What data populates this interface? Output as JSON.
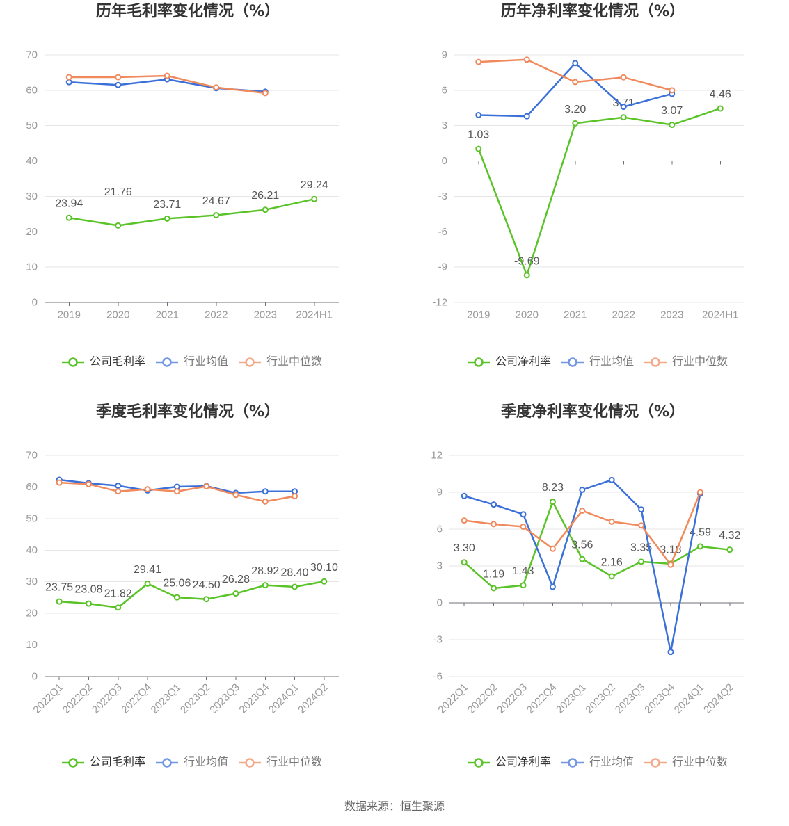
{
  "source": "数据来源：恒生聚源",
  "series_colors": [
    "#5ac328",
    "#3b70d9",
    "#f08a5d"
  ],
  "chart_data": [
    {
      "type": "line",
      "title": "历年毛利率变化情况（%）",
      "categories": [
        "2019",
        "2020",
        "2021",
        "2022",
        "2023",
        "2024H1"
      ],
      "ylim": [
        0,
        70
      ],
      "yticks": [
        70,
        60,
        50,
        40,
        30,
        20,
        10,
        0
      ],
      "grid": true,
      "legend": "bottom",
      "series": [
        {
          "name": "公司毛利率",
          "values": [
            23.94,
            21.76,
            23.71,
            24.67,
            26.21,
            29.24
          ],
          "data_labels": true
        },
        {
          "name": "行业均值",
          "values": [
            62.3,
            61.5,
            63.1,
            60.6,
            59.6,
            null
          ]
        },
        {
          "name": "行业中位数",
          "values": [
            63.7,
            63.7,
            64.1,
            60.8,
            59.2,
            null
          ]
        }
      ]
    },
    {
      "type": "line",
      "title": "历年净利率变化情况（%）",
      "categories": [
        "2019",
        "2020",
        "2021",
        "2022",
        "2023",
        "2024H1"
      ],
      "ylim": [
        -12,
        9
      ],
      "yticks": [
        9,
        6,
        3,
        0,
        -3,
        -6,
        -9,
        -12
      ],
      "grid": true,
      "legend": "bottom",
      "series": [
        {
          "name": "公司净利率",
          "values": [
            1.03,
            -9.69,
            3.2,
            3.71,
            3.07,
            4.46
          ],
          "data_labels": true
        },
        {
          "name": "行业均值",
          "values": [
            3.9,
            3.8,
            8.3,
            4.6,
            5.7,
            null
          ]
        },
        {
          "name": "行业中位数",
          "values": [
            8.4,
            8.6,
            6.7,
            7.1,
            6.0,
            null
          ]
        }
      ]
    },
    {
      "type": "line",
      "title": "季度毛利率变化情况（%）",
      "categories": [
        "2022Q1",
        "2022Q2",
        "2022Q3",
        "2022Q4",
        "2023Q1",
        "2023Q2",
        "2023Q3",
        "2023Q4",
        "2024Q1",
        "2024Q2"
      ],
      "ylim": [
        0,
        70
      ],
      "yticks": [
        70,
        60,
        50,
        40,
        30,
        20,
        10,
        0
      ],
      "grid": true,
      "legend": "bottom",
      "series": [
        {
          "name": "公司毛利率",
          "values": [
            23.75,
            23.08,
            21.82,
            29.41,
            25.06,
            24.5,
            26.28,
            28.92,
            28.4,
            30.1
          ],
          "data_labels": true
        },
        {
          "name": "行业均值",
          "values": [
            62.3,
            61.2,
            60.4,
            58.9,
            60.1,
            60.3,
            58.1,
            58.6,
            58.6,
            null
          ]
        },
        {
          "name": "行业中位数",
          "values": [
            61.4,
            60.9,
            58.6,
            59.3,
            58.6,
            60.2,
            57.5,
            55.4,
            57.1,
            null
          ]
        }
      ]
    },
    {
      "type": "line",
      "title": "季度净利率变化情况（%）",
      "categories": [
        "2022Q1",
        "2022Q2",
        "2022Q3",
        "2022Q4",
        "2023Q1",
        "2023Q2",
        "2023Q3",
        "2023Q4",
        "2024Q1",
        "2024Q2"
      ],
      "ylim": [
        -6,
        12
      ],
      "yticks": [
        12,
        9,
        6,
        3,
        0,
        -3,
        -6
      ],
      "grid": true,
      "legend": "bottom",
      "series": [
        {
          "name": "公司净利率",
          "values": [
            3.3,
            1.19,
            1.43,
            8.23,
            3.56,
            2.16,
            3.35,
            3.18,
            4.59,
            4.32
          ],
          "data_labels": true
        },
        {
          "name": "行业均值",
          "values": [
            8.7,
            8.0,
            7.2,
            1.3,
            9.2,
            10.0,
            7.6,
            -4.0,
            8.9,
            null
          ]
        },
        {
          "name": "行业中位数",
          "values": [
            6.7,
            6.4,
            6.2,
            4.4,
            7.5,
            6.6,
            6.3,
            3.1,
            9.0,
            null
          ]
        }
      ]
    }
  ]
}
